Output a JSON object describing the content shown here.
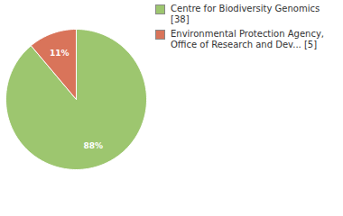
{
  "chart_data": {
    "type": "pie",
    "categories": [
      "Centre for Biodiversity Genomics [38]",
      "Environmental Protection Agency, Office of Research and Dev... [5]"
    ],
    "values": [
      88,
      11
    ],
    "colors": [
      "#9dc66f",
      "#d9745a"
    ],
    "data_labels": true,
    "value_labels": [
      "88%",
      "11%"
    ],
    "legend": "right"
  }
}
